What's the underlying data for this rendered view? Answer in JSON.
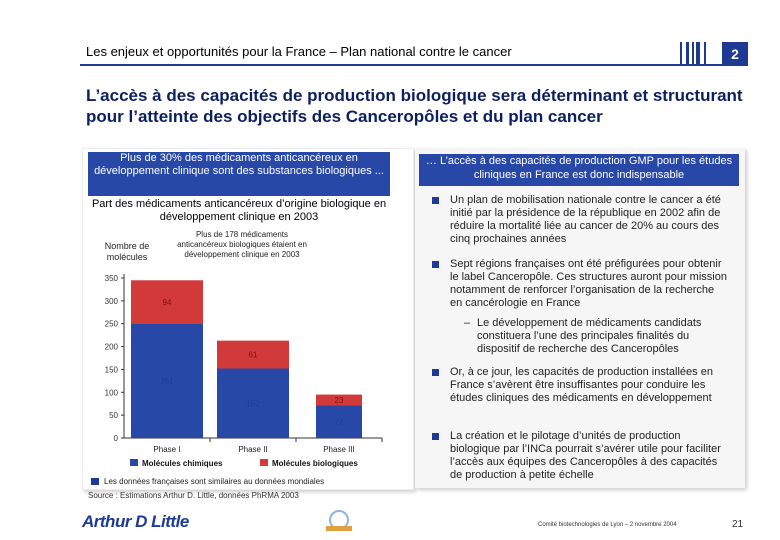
{
  "header": {
    "title_bold": "Les enjeux et opportunités pour la France",
    "title_rest": " – Plan national contre le cancer",
    "section_number": "2"
  },
  "slide_title": "L’accès à des capacités de production biologique sera déterminant et structurant pour l’atteinte des objectifs des Canceropôles et du plan cancer",
  "left": {
    "blue_text": "Plus de 30% des médicaments anticancéreux en développement clinique sont des substances biologiques ...",
    "sub_text": "Part des médicaments anticancéreux d’origine biologique en développement clinique en 2003",
    "y_label": "Nombre de molécules",
    "chart_note": "Plus de 178 médicaments anticancéreux biologiques étaient en développement clinique en 2003",
    "footnote": "Les données françaises sont similaires au données mondiales"
  },
  "chart_data": {
    "type": "bar",
    "stacked": true,
    "categories": [
      "Phase I",
      "Phase II",
      "Phase III"
    ],
    "series": [
      {
        "name": "Molécules chimiques",
        "values": [
          251,
          152,
          72
        ],
        "color": "#2848a8"
      },
      {
        "name": "Molécules biologiques",
        "values": [
          94,
          61,
          23
        ],
        "color": "#d23a3a"
      }
    ],
    "ylim": [
      0,
      350
    ],
    "yticks": [
      "0",
      "50",
      "100",
      "150",
      "200",
      "250",
      "300",
      "350"
    ],
    "ylabel": "Nombre de molécules",
    "legend_position": "bottom"
  },
  "right": {
    "blue_text": "… L’accès à des capacités de production GMP pour les études cliniques en France est donc indispensable",
    "bullets": [
      "Un plan de mobilisation nationale contre le cancer a été initié par la présidence de la république en 2002 afin de réduire la mortalité liée au cancer de 20% au cours des cinq prochaines années",
      "Sept régions françaises ont été préfigurées pour obtenir le label Canceropôle. Ces structures auront pour mission notamment de renforcer l’organisation de la recherche en cancérologie en France",
      "Or, à ce jour, les capacités de production installées en France s’avèrent être insuffisantes pour conduire les études cliniques des médicaments en développement",
      "La création et le pilotage d’unités de production biologique par l’INCa pourrait s’avérer utile pour faciliter l’accès aux équipes des Canceropôles à des capacités de production à petite échelle"
    ],
    "subbullet": "Le développement de médicaments candidats constituera l’une des principales finalités du dispositif de recherche des Canceropôles"
  },
  "footer": {
    "source": "Source : Estimations Arthur D. Little, données PhRMA 2003",
    "logo_text": "Arthur D Little",
    "event": "Comité biotechnologies de Lyon – 2 novembre 2004",
    "page": "21"
  }
}
